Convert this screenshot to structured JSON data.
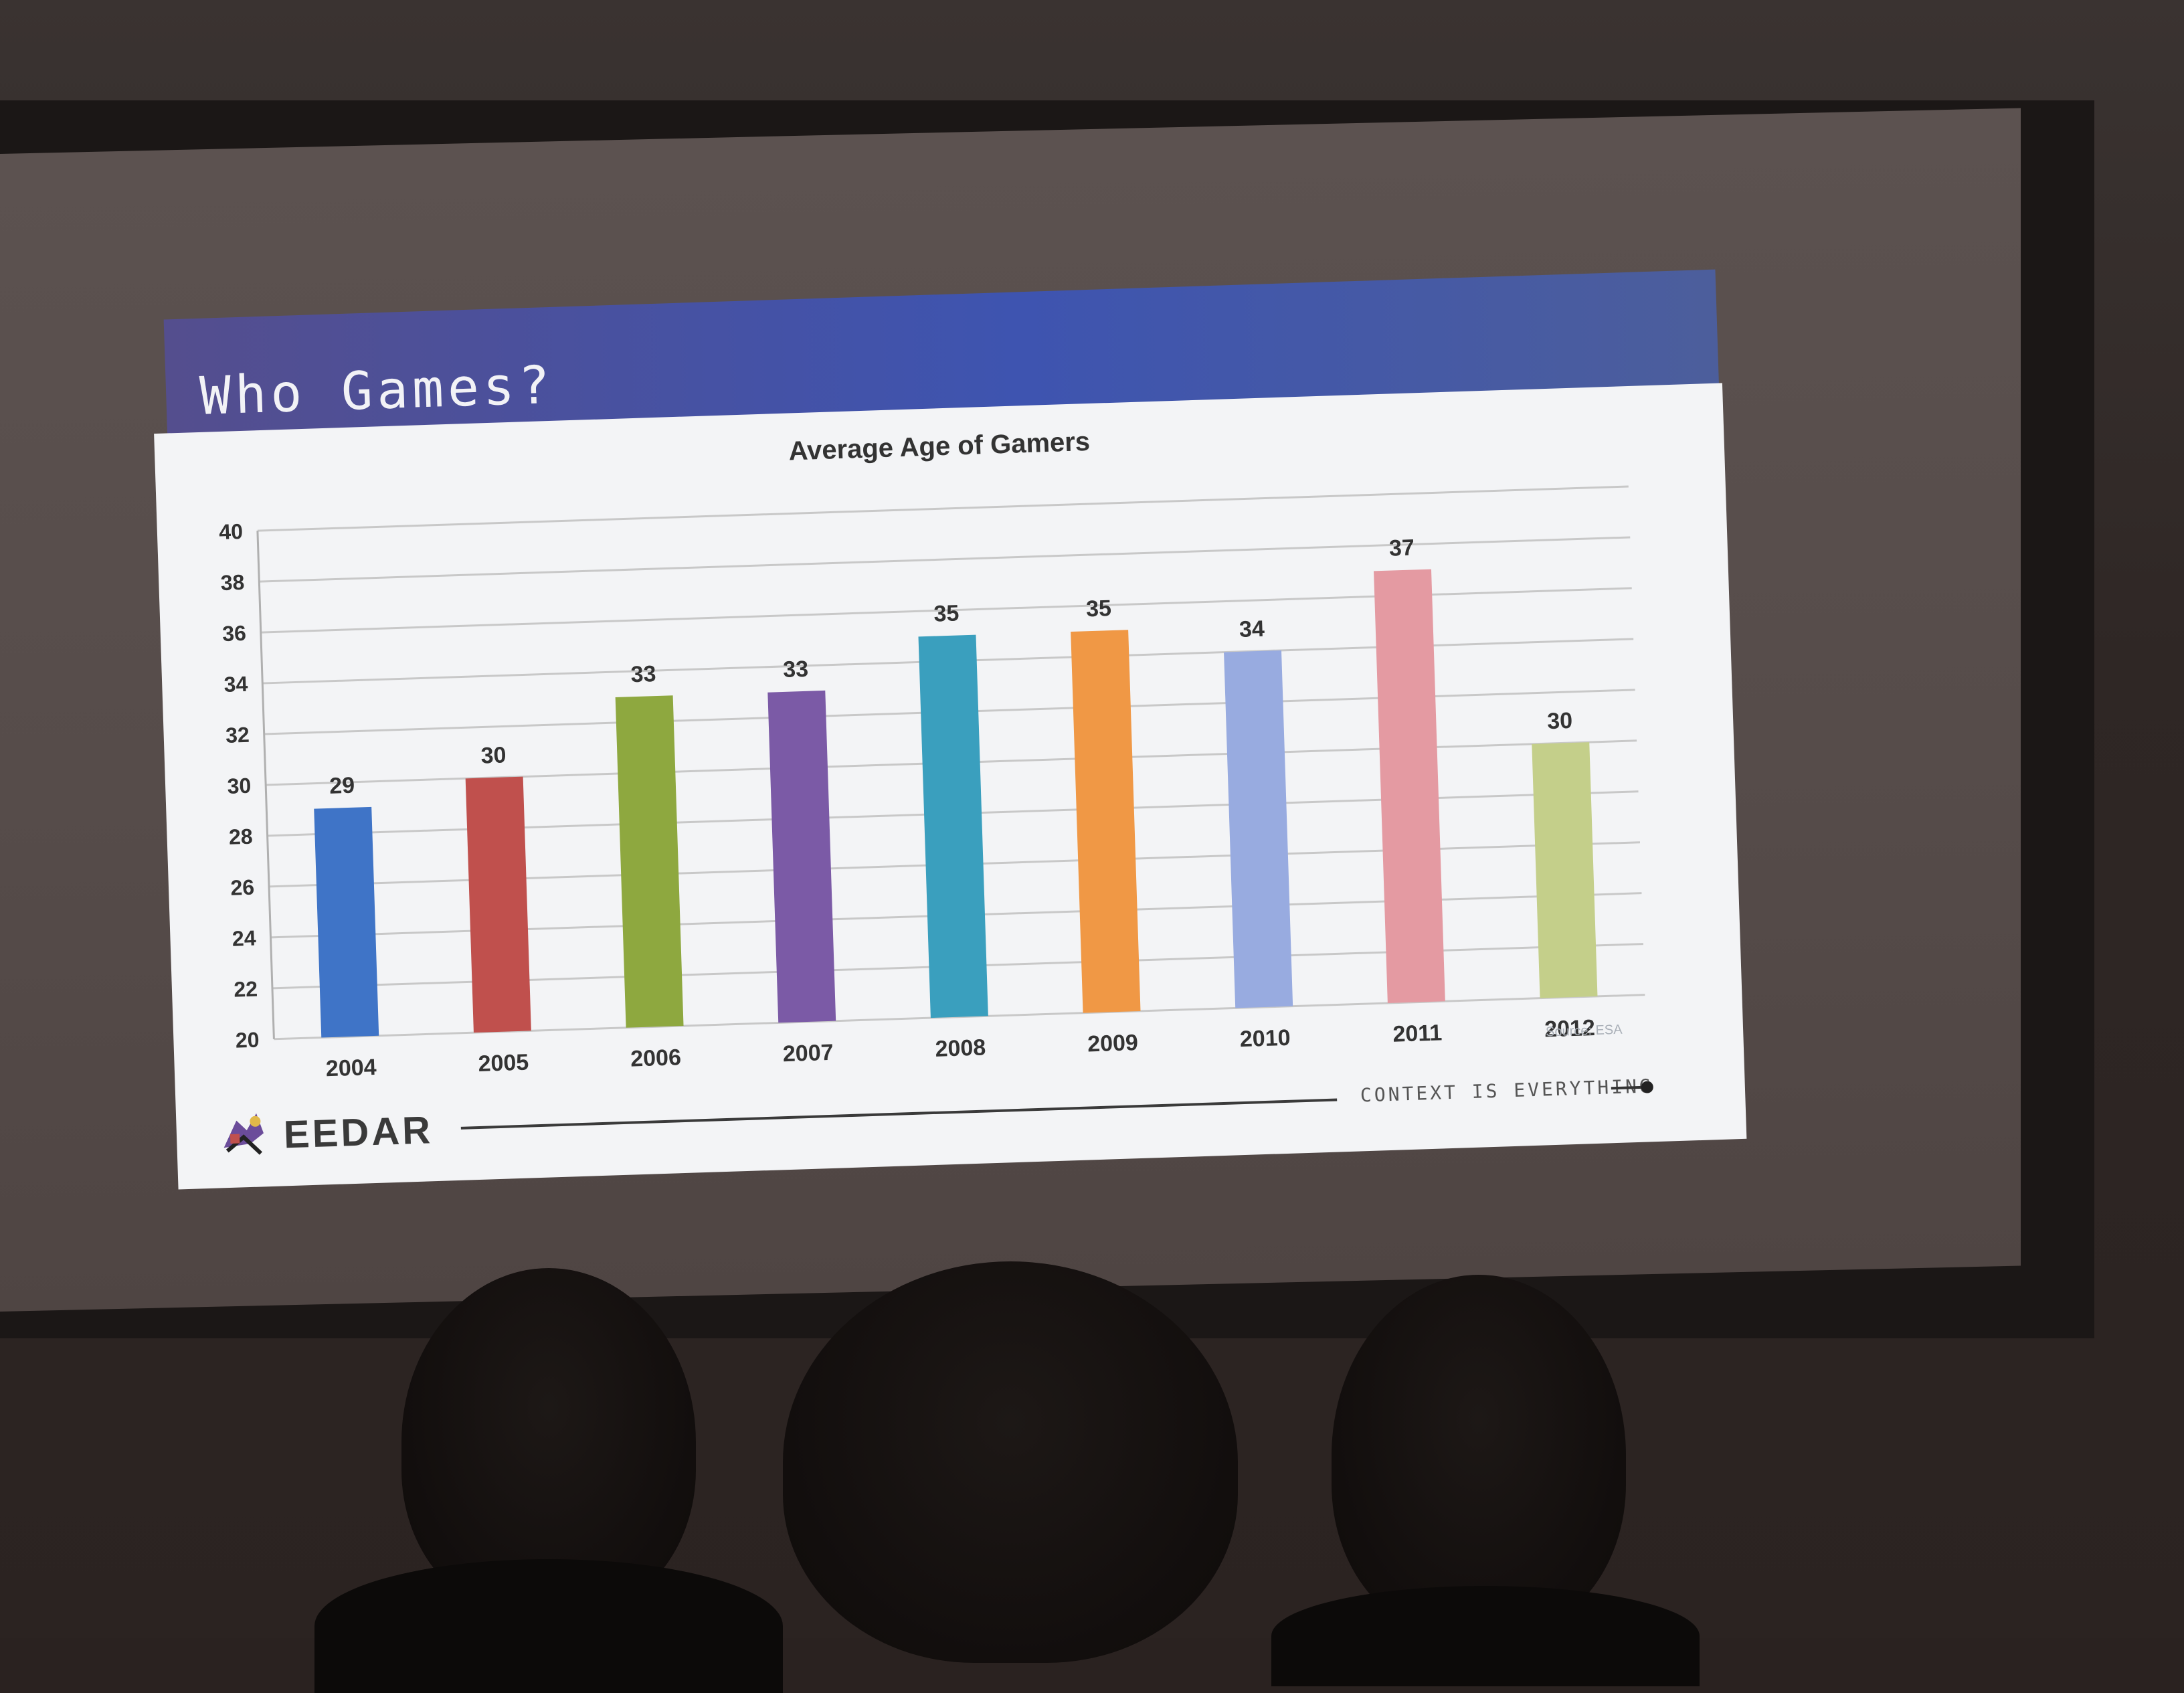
{
  "slide": {
    "title": "Who Games?",
    "footer_text": "CONTEXT IS EVERYTHING",
    "logo_text": "EEDAR",
    "source": "Source: ESA"
  },
  "chart_data": {
    "type": "bar",
    "title": "Average Age of Gamers",
    "xlabel": "",
    "ylabel": "",
    "categories": [
      "2004",
      "2005",
      "2006",
      "2007",
      "2008",
      "2009",
      "2010",
      "2011",
      "2012"
    ],
    "values": [
      29,
      30,
      33,
      33,
      35,
      35,
      34,
      37,
      30
    ],
    "labels": [
      "29",
      "30",
      "33",
      "33",
      "35",
      "35",
      "34",
      "37",
      "30"
    ],
    "colors": [
      "#3f74c7",
      "#c0504d",
      "#8ea83f",
      "#7b5aa6",
      "#3a9fbe",
      "#f09845",
      "#98abe0",
      "#e49aa2",
      "#c4cf8a"
    ],
    "ylim": [
      20,
      40
    ],
    "yticks": [
      "20",
      "22",
      "24",
      "26",
      "28",
      "30",
      "32",
      "34",
      "36",
      "38",
      "40"
    ],
    "grid": true,
    "legend": "none"
  }
}
